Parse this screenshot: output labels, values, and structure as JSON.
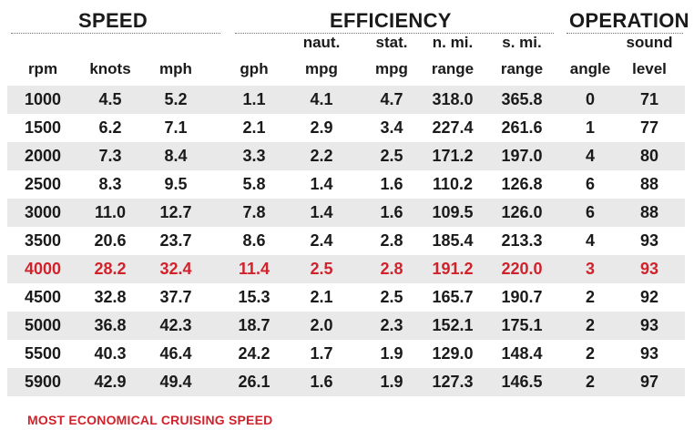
{
  "groups": {
    "speed": "SPEED",
    "efficiency": "EFFICIENCY",
    "operation": "OPERATION"
  },
  "headers": {
    "rpm": [
      "",
      "rpm"
    ],
    "knots": [
      "",
      "knots"
    ],
    "mph": [
      "",
      "mph"
    ],
    "gph": [
      "",
      "gph"
    ],
    "naut_mpg": [
      "naut.",
      "mpg"
    ],
    "stat_mpg": [
      "stat.",
      "mpg"
    ],
    "nmi_range": [
      "n. mi.",
      "range"
    ],
    "smi_range": [
      "s. mi.",
      "range"
    ],
    "angle": [
      "",
      "angle"
    ],
    "sound": [
      "sound",
      "level"
    ]
  },
  "rows": [
    [
      "1000",
      "4.5",
      "5.2",
      "1.1",
      "4.1",
      "4.7",
      "318.0",
      "365.8",
      "0",
      "71"
    ],
    [
      "1500",
      "6.2",
      "7.1",
      "2.1",
      "2.9",
      "3.4",
      "227.4",
      "261.6",
      "1",
      "77"
    ],
    [
      "2000",
      "7.3",
      "8.4",
      "3.3",
      "2.2",
      "2.5",
      "171.2",
      "197.0",
      "4",
      "80"
    ],
    [
      "2500",
      "8.3",
      "9.5",
      "5.8",
      "1.4",
      "1.6",
      "110.2",
      "126.8",
      "6",
      "88"
    ],
    [
      "3000",
      "11.0",
      "12.7",
      "7.8",
      "1.4",
      "1.6",
      "109.5",
      "126.0",
      "6",
      "88"
    ],
    [
      "3500",
      "20.6",
      "23.7",
      "8.6",
      "2.4",
      "2.8",
      "185.4",
      "213.3",
      "4",
      "93"
    ],
    [
      "4000",
      "28.2",
      "32.4",
      "11.4",
      "2.5",
      "2.8",
      "191.2",
      "220.0",
      "3",
      "93"
    ],
    [
      "4500",
      "32.8",
      "37.7",
      "15.3",
      "2.1",
      "2.5",
      "165.7",
      "190.7",
      "2",
      "92"
    ],
    [
      "5000",
      "36.8",
      "42.3",
      "18.7",
      "2.0",
      "2.3",
      "152.1",
      "175.1",
      "2",
      "93"
    ],
    [
      "5500",
      "40.3",
      "46.4",
      "24.2",
      "1.7",
      "1.9",
      "129.0",
      "148.4",
      "2",
      "93"
    ],
    [
      "5900",
      "42.9",
      "49.4",
      "26.1",
      "1.6",
      "1.9",
      "127.3",
      "146.5",
      "2",
      "97"
    ]
  ],
  "highlight_row_index": 6,
  "highlight_color": "#d1222b",
  "footnote": "MOST ECONOMICAL CRUISING SPEED"
}
